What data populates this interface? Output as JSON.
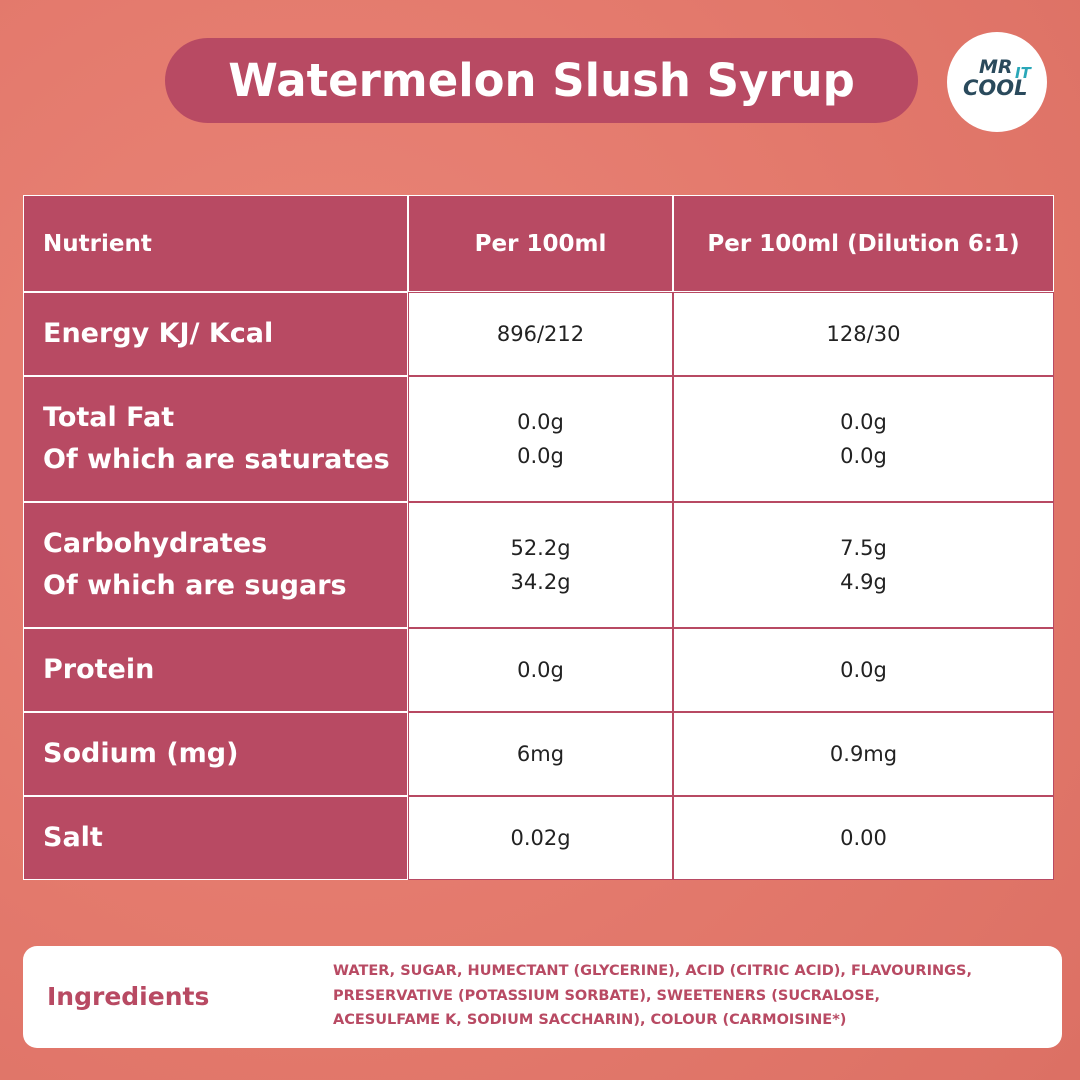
{
  "header": {
    "title": "Watermelon Slush Syrup",
    "logo": {
      "line1": "MR",
      "line2": "COOL",
      "line3": "IT"
    }
  },
  "table": {
    "headers": [
      "Nutrient",
      "Per 100ml",
      "Per 100ml (Dilution 6:1)"
    ],
    "rows": [
      [
        [
          "Energy KJ/ Kcal"
        ],
        [
          "896/212"
        ],
        [
          "128/30"
        ]
      ],
      [
        [
          "Total Fat",
          "Of which are saturates"
        ],
        [
          "0.0g",
          "0.0g"
        ],
        [
          "0.0g",
          "0.0g"
        ]
      ],
      [
        [
          "Carbohydrates",
          "Of which are sugars"
        ],
        [
          "52.2g",
          "34.2g"
        ],
        [
          "7.5g",
          "4.9g"
        ]
      ],
      [
        [
          "Protein"
        ],
        [
          "0.0g"
        ],
        [
          "0.0g"
        ]
      ],
      [
        [
          "Sodium (mg)"
        ],
        [
          "6mg"
        ],
        [
          "0.9mg"
        ]
      ],
      [
        [
          "Salt"
        ],
        [
          "0.02g"
        ],
        [
          "0.00"
        ]
      ]
    ]
  },
  "ingredients": {
    "label": "Ingredients",
    "lines": [
      "WATER, SUGAR, HUMECTANT (GLYCERINE), ACID (CITRIC ACID), FLAVOURINGS,",
      "PRESERVATIVE (POTASSIUM SORBATE), SWEETENERS (SUCRALOSE,",
      "ACESULFAME K, SODIUM SACCHARIN), COLOUR (CARMOISINE*)"
    ]
  }
}
